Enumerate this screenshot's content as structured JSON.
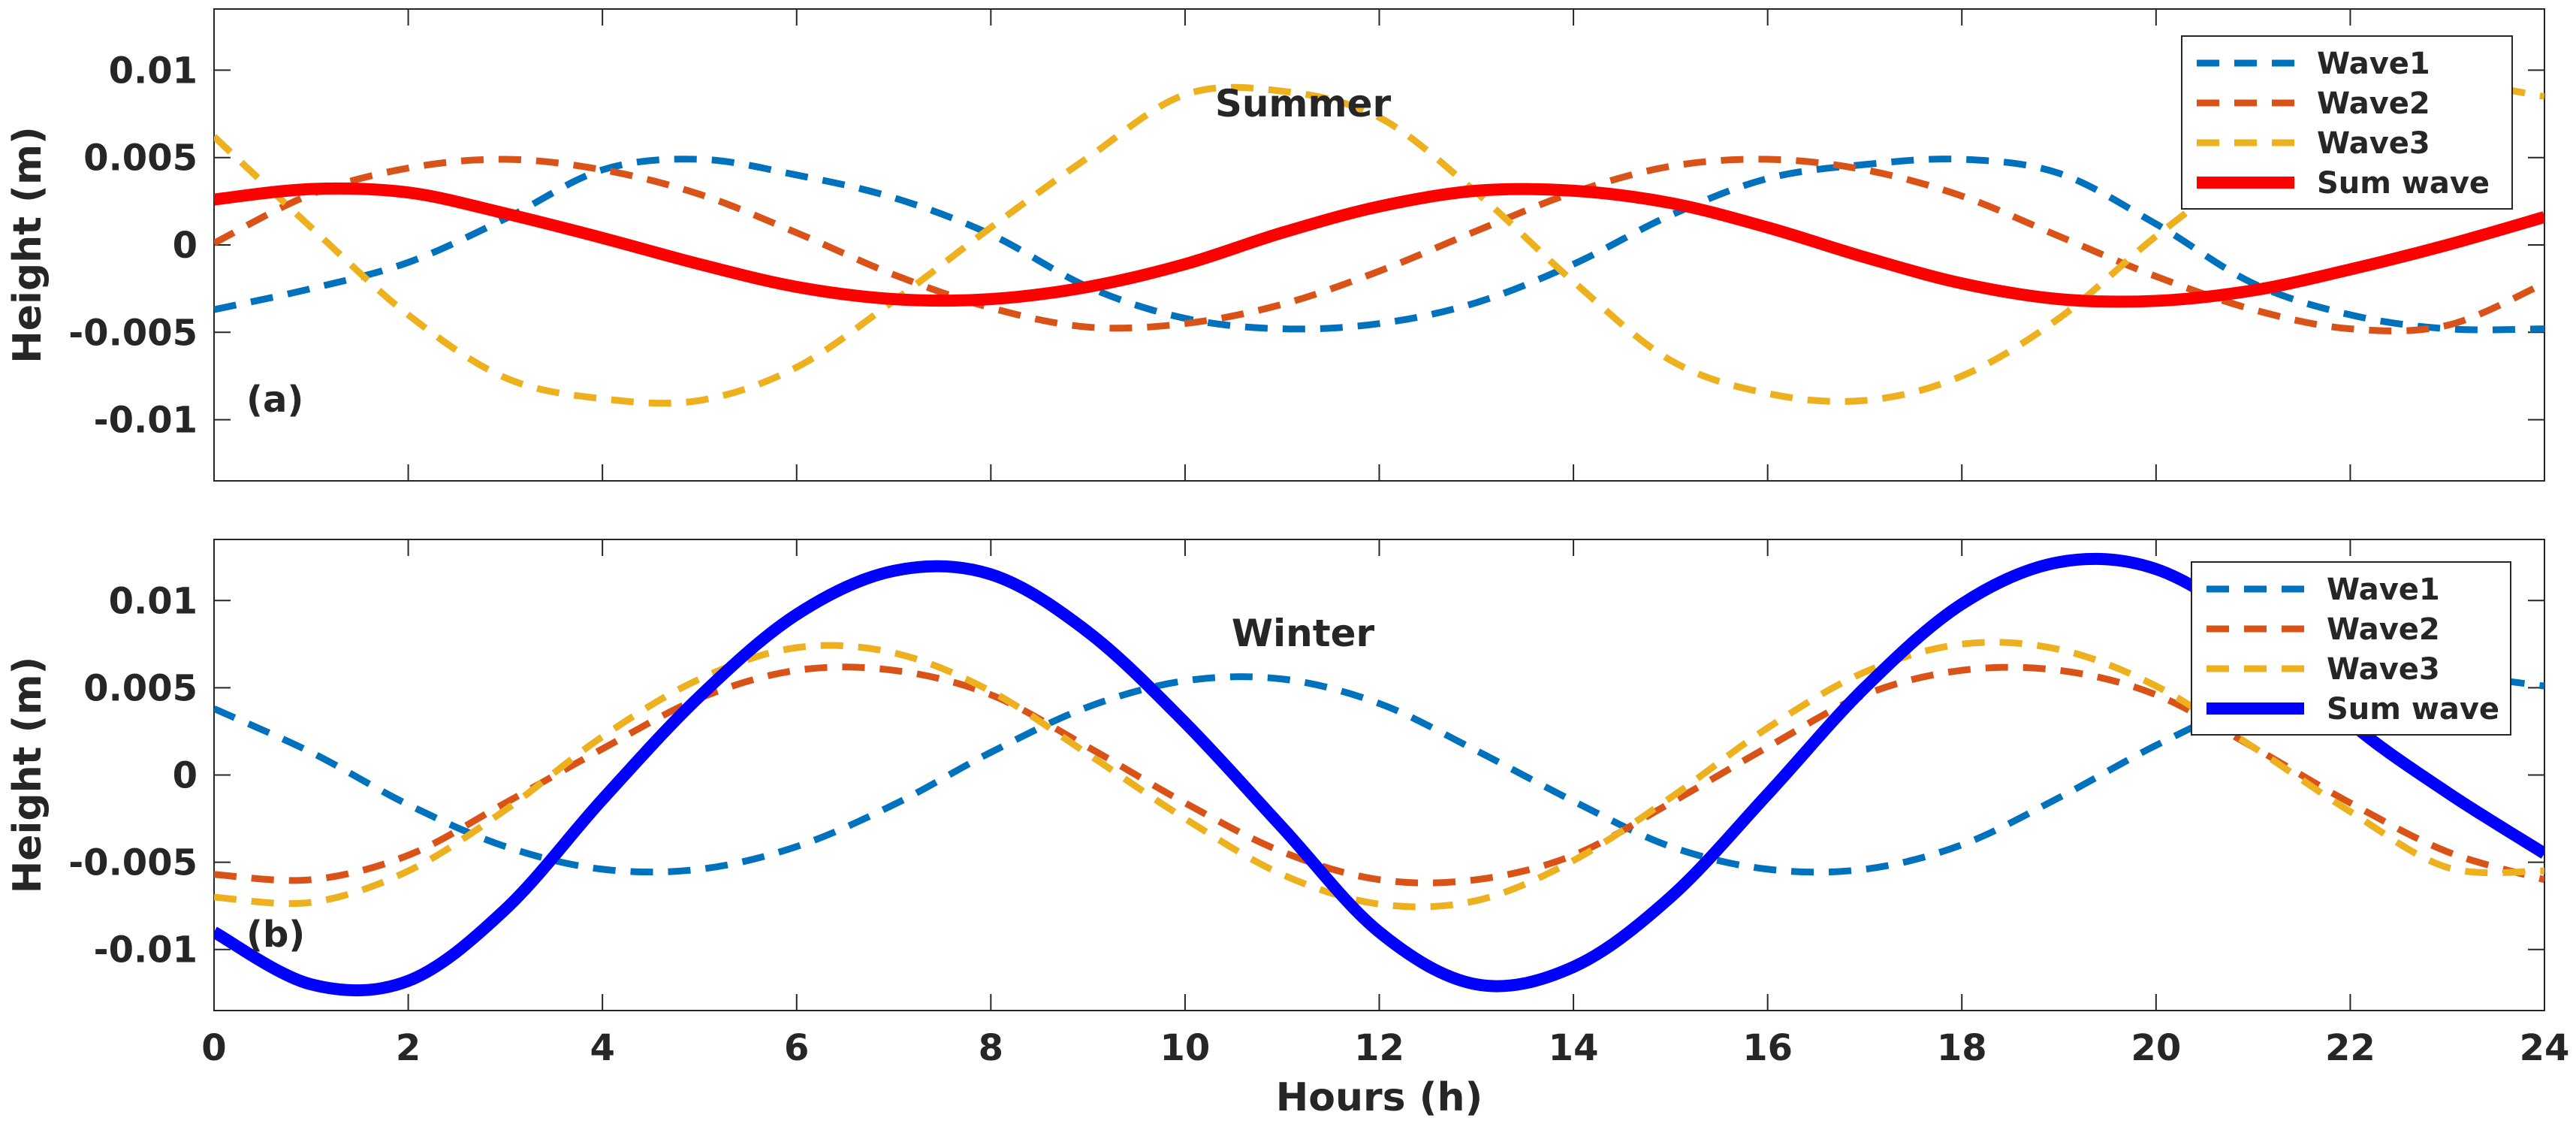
{
  "chart_data": [
    {
      "type": "line",
      "title": "Summer",
      "panel_label": "(a)",
      "xlabel": "",
      "ylabel": "Height (m)",
      "xlim": [
        0,
        24
      ],
      "ylim": [
        -0.0135,
        0.0135
      ],
      "xticks": [
        0,
        2,
        4,
        6,
        8,
        10,
        12,
        14,
        16,
        18,
        20,
        22,
        24
      ],
      "xtick_labels": [],
      "yticks": [
        -0.01,
        -0.005,
        0,
        0.005,
        0.01
      ],
      "ytick_labels": [
        "-0.01",
        "-0.005",
        "0",
        "0.005",
        "0.01"
      ],
      "grid": false,
      "legend": "top-right",
      "x": [
        0,
        1,
        2,
        3,
        4,
        5,
        6,
        7,
        8,
        9,
        10,
        11,
        12,
        13,
        14,
        15,
        16,
        17,
        18,
        19,
        20,
        21,
        22,
        23,
        24
      ],
      "series": [
        {
          "name": "Wave1",
          "color": "#0072BD",
          "style": "dashed",
          "values": [
            -0.0037,
            -0.0025,
            -0.001,
            0.0015,
            0.0043,
            0.0049,
            0.004,
            0.0027,
            0.0006,
            -0.0024,
            -0.0042,
            -0.0048,
            -0.0045,
            -0.0033,
            -0.0011,
            0.0017,
            0.0038,
            0.0046,
            0.0049,
            0.0041,
            0.0012,
            -0.0022,
            -0.004,
            -0.0048,
            -0.0048
          ]
        },
        {
          "name": "Wave2",
          "color": "#D95319",
          "style": "dashed",
          "values": [
            0.0001,
            0.0029,
            0.0044,
            0.0049,
            0.0043,
            0.0029,
            0.0007,
            -0.0017,
            -0.0036,
            -0.0047,
            -0.0045,
            -0.0034,
            -0.0015,
            0.0008,
            0.003,
            0.0045,
            0.0049,
            0.0043,
            0.0028,
            0.0005,
            -0.0018,
            -0.0037,
            -0.0048,
            -0.0046,
            -0.0022
          ]
        },
        {
          "name": "Wave3",
          "color": "#EDB120",
          "style": "dashed",
          "values": [
            0.0062,
            0.001,
            -0.004,
            -0.0076,
            -0.0088,
            -0.0089,
            -0.007,
            -0.0032,
            0.001,
            0.005,
            0.0086,
            0.0088,
            0.0073,
            0.003,
            -0.0021,
            -0.0066,
            -0.0085,
            -0.0089,
            -0.0075,
            -0.0042,
            0.0005,
            0.0046,
            0.008,
            0.0092,
            0.0085
          ]
        },
        {
          "name": "Sum wave",
          "color": "#FF0000",
          "style": "solid",
          "values": [
            0.0026,
            0.0032,
            0.003,
            0.0018,
            0.0004,
            -0.0011,
            -0.0024,
            -0.0031,
            -0.0031,
            -0.0024,
            -0.0011,
            0.0007,
            0.0022,
            0.0031,
            0.0031,
            0.0024,
            0.001,
            -0.0007,
            -0.0022,
            -0.0031,
            -0.0032,
            -0.0026,
            -0.0014,
            0.0,
            0.0016
          ]
        }
      ]
    },
    {
      "type": "line",
      "title": "Winter",
      "panel_label": "(b)",
      "xlabel": "Hours (h)",
      "ylabel": "Height (m)",
      "xlim": [
        0,
        24
      ],
      "ylim": [
        -0.0135,
        0.0135
      ],
      "xticks": [
        0,
        2,
        4,
        6,
        8,
        10,
        12,
        14,
        16,
        18,
        20,
        22,
        24
      ],
      "xtick_labels": [
        "0",
        "2",
        "4",
        "6",
        "8",
        "10",
        "12",
        "14",
        "16",
        "18",
        "20",
        "22",
        "24"
      ],
      "yticks": [
        -0.01,
        -0.005,
        0,
        0.005,
        0.01
      ],
      "ytick_labels": [
        "-0.01",
        "-0.005",
        "0",
        "0.005",
        "0.01"
      ],
      "grid": false,
      "legend": "top-right",
      "x": [
        0,
        1,
        2,
        3,
        4,
        5,
        6,
        7,
        8,
        9,
        10,
        11,
        12,
        13,
        14,
        15,
        16,
        17,
        18,
        19,
        20,
        21,
        22,
        23,
        24
      ],
      "series": [
        {
          "name": "Wave1",
          "color": "#0072BD",
          "style": "dashed",
          "values": [
            0.0038,
            0.0013,
            -0.0017,
            -0.0041,
            -0.0054,
            -0.0054,
            -0.0041,
            -0.0017,
            0.0013,
            0.0039,
            0.0054,
            0.0055,
            0.0041,
            0.0014,
            -0.0015,
            -0.0041,
            -0.0054,
            -0.0054,
            -0.004,
            -0.0013,
            0.0017,
            0.0042,
            0.0055,
            0.0057,
            0.0051
          ]
        },
        {
          "name": "Wave2",
          "color": "#D95319",
          "style": "dashed",
          "values": [
            -0.0057,
            -0.006,
            -0.0046,
            -0.0016,
            0.0015,
            0.0044,
            0.006,
            0.006,
            0.0046,
            0.0016,
            -0.0016,
            -0.0044,
            -0.006,
            -0.006,
            -0.0046,
            -0.0016,
            0.0016,
            0.0046,
            0.006,
            0.006,
            0.0046,
            0.0016,
            -0.0016,
            -0.0044,
            -0.006
          ]
        },
        {
          "name": "Wave3",
          "color": "#EDB120",
          "style": "dashed",
          "values": [
            -0.007,
            -0.0073,
            -0.0055,
            -0.002,
            0.0022,
            0.0055,
            0.0073,
            0.007,
            0.0048,
            0.0012,
            -0.0025,
            -0.0057,
            -0.0074,
            -0.0072,
            -0.0049,
            -0.0013,
            0.0027,
            0.0059,
            0.0075,
            0.0072,
            0.0051,
            0.0016,
            -0.0021,
            -0.0053,
            -0.0055
          ]
        },
        {
          "name": "Sum wave",
          "color": "#0000FF",
          "style": "solid",
          "values": [
            -0.009,
            -0.012,
            -0.0118,
            -0.0077,
            -0.0014,
            0.0045,
            0.0092,
            0.0117,
            0.0115,
            0.0082,
            0.003,
            -0.003,
            -0.009,
            -0.012,
            -0.011,
            -0.007,
            -0.0011,
            0.005,
            0.0098,
            0.0122,
            0.0118,
            0.0084,
            0.003,
            -0.001,
            -0.0045
          ]
        }
      ]
    }
  ]
}
